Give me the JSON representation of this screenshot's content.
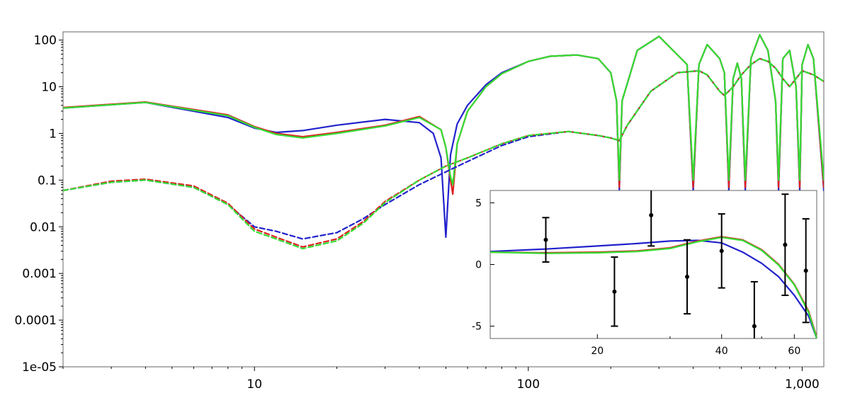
{
  "chart_data": [
    {
      "type": "line",
      "x_scale": "log",
      "y_scale": "log",
      "xlim": [
        2,
        1200
      ],
      "ylim": [
        1e-05,
        150
      ],
      "x_ticks": [
        10,
        100,
        1000
      ],
      "x_tick_labels": [
        "10",
        "100",
        "1,000"
      ],
      "y_ticks": [
        100,
        10,
        1,
        0.1,
        0.01,
        0.001,
        0.0001,
        1e-05
      ],
      "y_tick_labels": [
        "100",
        "10",
        "1",
        "0.1",
        "0.01",
        "0.001",
        "0.0001",
        "1e-05"
      ],
      "grid": false,
      "series": [
        {
          "style": "solid",
          "color": "#2222cc",
          "x": [
            2,
            4,
            8,
            10,
            12,
            15,
            20,
            30,
            40,
            45,
            48,
            50,
            52,
            55,
            60,
            70,
            80,
            100,
            120,
            150,
            180,
            200,
            210,
            215,
            220,
            250,
            300,
            380,
            400,
            420,
            450,
            500,
            520,
            540,
            560,
            580,
            600,
            620,
            650,
            700,
            750,
            800,
            820,
            850,
            900,
            950,
            980,
            1000,
            1050,
            1100,
            1200
          ],
          "y": [
            3.5,
            4.6,
            2.2,
            1.3,
            1.05,
            1.15,
            1.5,
            2.0,
            1.7,
            1.0,
            0.3,
            0.006,
            0.35,
            1.6,
            4.0,
            11,
            20,
            35,
            45,
            48,
            40,
            20,
            5,
            0.06,
            5,
            60,
            120,
            30,
            0.06,
            30,
            80,
            40,
            20,
            0.06,
            15,
            32,
            15,
            0.06,
            40,
            130,
            60,
            5,
            0.06,
            40,
            60,
            10,
            0.06,
            30,
            80,
            40,
            0.06
          ]
        },
        {
          "style": "solid",
          "color": "#dd2222",
          "x": [
            2,
            4,
            8,
            10,
            12,
            15,
            20,
            30,
            40,
            48,
            50,
            52,
            53,
            55,
            60,
            70,
            80,
            100,
            120,
            150,
            180,
            200,
            210,
            215,
            220,
            250,
            300,
            380,
            400,
            420,
            450,
            500,
            520,
            540,
            560,
            580,
            600,
            620,
            650,
            700,
            750,
            800,
            820,
            850,
            900,
            950,
            980,
            1000,
            1050,
            1100,
            1200
          ],
          "y": [
            3.6,
            4.7,
            2.5,
            1.4,
            1.0,
            0.85,
            1.05,
            1.5,
            2.3,
            1.2,
            0.5,
            0.1,
            0.05,
            0.6,
            3.0,
            10,
            19,
            35,
            45,
            48,
            40,
            20,
            5,
            0.07,
            5,
            60,
            120,
            30,
            0.07,
            30,
            80,
            40,
            20,
            0.07,
            15,
            32,
            15,
            0.07,
            40,
            130,
            60,
            5,
            0.07,
            40,
            60,
            10,
            0.07,
            30,
            80,
            40,
            0.07
          ]
        },
        {
          "style": "solid",
          "color": "#33dd33",
          "x": [
            2,
            4,
            8,
            10,
            12,
            15,
            20,
            30,
            40,
            48,
            50,
            52,
            53,
            55,
            60,
            70,
            80,
            100,
            120,
            150,
            180,
            200,
            210,
            215,
            220,
            250,
            300,
            380,
            400,
            420,
            450,
            500,
            520,
            540,
            560,
            580,
            600,
            620,
            650,
            700,
            750,
            800,
            820,
            850,
            900,
            950,
            980,
            1000,
            1050,
            1100,
            1200
          ],
          "y": [
            3.5,
            4.6,
            2.4,
            1.35,
            0.95,
            0.8,
            1.0,
            1.45,
            2.2,
            1.2,
            0.5,
            0.12,
            0.08,
            0.6,
            3.0,
            10,
            19,
            35,
            45,
            48,
            40,
            20,
            5,
            0.1,
            5,
            60,
            120,
            30,
            0.1,
            30,
            80,
            40,
            20,
            0.1,
            15,
            32,
            15,
            0.1,
            40,
            130,
            60,
            5,
            0.1,
            40,
            60,
            10,
            0.1,
            30,
            80,
            40,
            0.1
          ]
        },
        {
          "style": "dashed",
          "color": "#2222cc",
          "x": [
            2,
            3,
            4,
            6,
            8,
            10,
            12,
            15,
            20,
            25,
            30,
            40,
            50,
            60,
            80,
            100,
            140,
            180,
            200,
            215,
            230,
            280,
            350,
            420,
            450,
            500,
            520,
            560,
            600,
            650,
            700,
            750,
            800,
            850,
            900,
            950,
            1000,
            1100,
            1200
          ],
          "y": [
            0.06,
            0.09,
            0.1,
            0.07,
            0.03,
            0.01,
            0.008,
            0.0055,
            0.0075,
            0.015,
            0.03,
            0.08,
            0.15,
            0.25,
            0.55,
            0.85,
            1.1,
            0.9,
            0.8,
            0.7,
            1.5,
            8,
            20,
            22,
            18,
            8,
            6.5,
            10,
            18,
            30,
            40,
            35,
            25,
            15,
            10,
            15,
            22,
            18,
            13
          ]
        },
        {
          "style": "dashed",
          "color": "#dd2222",
          "x": [
            2,
            3,
            4,
            6,
            8,
            10,
            12,
            15,
            20,
            25,
            30,
            40,
            50,
            60,
            80,
            100,
            140,
            180,
            200,
            215,
            230,
            280,
            350,
            420,
            450,
            500,
            520,
            560,
            600,
            650,
            700,
            750,
            800,
            850,
            900,
            950,
            1000,
            1100,
            1200
          ],
          "y": [
            0.06,
            0.095,
            0.105,
            0.075,
            0.032,
            0.009,
            0.006,
            0.0037,
            0.0055,
            0.013,
            0.035,
            0.1,
            0.2,
            0.3,
            0.6,
            0.9,
            1.1,
            0.9,
            0.8,
            0.7,
            1.5,
            8,
            20,
            22,
            18,
            8,
            6.5,
            10,
            18,
            30,
            40,
            35,
            25,
            15,
            10,
            15,
            22,
            18,
            13
          ]
        },
        {
          "style": "dashed",
          "color": "#33dd33",
          "x": [
            2,
            3,
            4,
            6,
            8,
            10,
            12,
            15,
            20,
            25,
            30,
            40,
            50,
            60,
            80,
            100,
            140,
            180,
            200,
            215,
            230,
            280,
            350,
            420,
            450,
            500,
            520,
            560,
            600,
            650,
            700,
            750,
            800,
            850,
            900,
            950,
            1000,
            1100,
            1200
          ],
          "y": [
            0.06,
            0.09,
            0.1,
            0.07,
            0.03,
            0.008,
            0.0055,
            0.0034,
            0.005,
            0.012,
            0.033,
            0.1,
            0.2,
            0.3,
            0.6,
            0.9,
            1.1,
            0.9,
            0.8,
            0.7,
            1.5,
            8,
            20,
            22,
            18,
            8,
            6.5,
            10,
            18,
            30,
            40,
            35,
            25,
            15,
            10,
            15,
            22,
            18,
            13
          ]
        }
      ]
    },
    {
      "type": "line",
      "inset": true,
      "x_scale": "log",
      "xlim": [
        11,
        68
      ],
      "ylim": [
        -6,
        6
      ],
      "x_ticks": [
        20,
        40,
        60
      ],
      "x_tick_labels": [
        "20",
        "40",
        "60"
      ],
      "y_ticks": [
        5,
        0,
        -5
      ],
      "y_tick_labels": [
        "5",
        "0",
        "-5"
      ],
      "grid": false,
      "series": [
        {
          "style": "solid",
          "color": "#2222cc",
          "x": [
            11,
            15,
            20,
            25,
            30,
            35,
            40,
            45,
            50,
            55,
            60,
            65,
            68
          ],
          "y": [
            1.05,
            1.25,
            1.5,
            1.7,
            1.9,
            1.95,
            1.75,
            1.0,
            0.1,
            -1.0,
            -2.5,
            -4.2,
            -6.0
          ]
        },
        {
          "style": "solid",
          "color": "#dd2222",
          "x": [
            11,
            15,
            20,
            25,
            30,
            35,
            40,
            45,
            50,
            55,
            60,
            65,
            68
          ],
          "y": [
            1.0,
            0.95,
            1.0,
            1.1,
            1.35,
            1.9,
            2.25,
            2.0,
            1.2,
            0.0,
            -1.6,
            -3.8,
            -5.9
          ]
        },
        {
          "style": "solid",
          "color": "#33dd33",
          "x": [
            11,
            15,
            20,
            25,
            30,
            35,
            40,
            45,
            50,
            55,
            60,
            65,
            68
          ],
          "y": [
            1.0,
            0.9,
            0.95,
            1.05,
            1.3,
            1.85,
            2.2,
            1.95,
            1.15,
            -0.05,
            -1.65,
            -3.9,
            -6.0
          ]
        },
        {
          "type": "errorbar",
          "color": "#000000",
          "x": [
            15,
            22,
            27,
            33,
            40,
            48,
            57,
            64
          ],
          "y": [
            2.0,
            -2.2,
            4.0,
            -1.0,
            1.1,
            -5.0,
            1.6,
            -0.5
          ],
          "yerr": [
            1.8,
            2.8,
            2.5,
            3.0,
            3.0,
            3.6,
            4.1,
            4.2
          ]
        }
      ]
    }
  ]
}
